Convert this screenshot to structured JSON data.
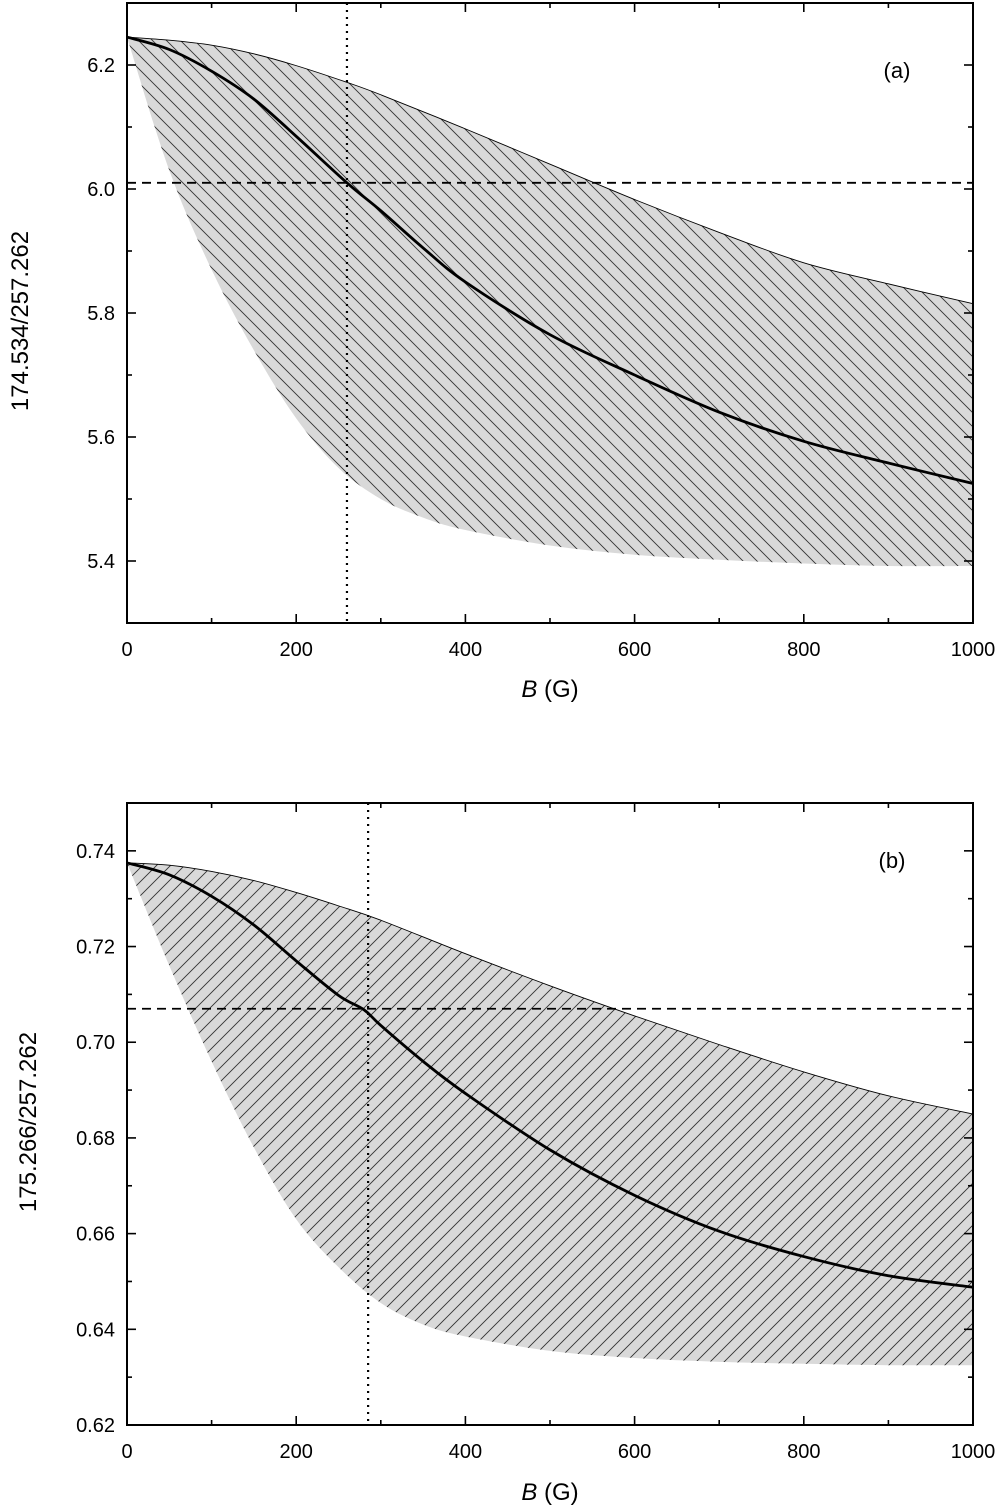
{
  "chart_data": [
    {
      "type": "area",
      "panel_label": "(a)",
      "xlabel_italic": "B",
      "xlabel_rest": " (G)",
      "ylabel": "174.534/257.262",
      "xlim": [
        0,
        1000
      ],
      "ylim": [
        5.3,
        6.3
      ],
      "xticks": [
        0,
        200,
        400,
        600,
        800,
        1000
      ],
      "yticks": [
        5.4,
        5.6,
        5.8,
        6.0,
        6.2
      ],
      "ytick_decimals": 1,
      "grid": false,
      "fill_color": "#d9d9d9",
      "hatch": "diagonal",
      "band_upper": {
        "x": [
          0,
          50,
          100,
          150,
          200,
          260,
          300,
          400,
          500,
          600,
          700,
          800,
          900,
          1000
        ],
        "y": [
          6.245,
          6.24,
          6.232,
          6.218,
          6.199,
          6.172,
          6.152,
          6.097,
          6.04,
          5.983,
          5.93,
          5.881,
          5.847,
          5.815
        ]
      },
      "band_lower": {
        "x": [
          0,
          50,
          100,
          150,
          200,
          250,
          300,
          350,
          400,
          500,
          600,
          700,
          800,
          900,
          1000
        ],
        "y": [
          6.245,
          6.03,
          5.87,
          5.74,
          5.63,
          5.55,
          5.5,
          5.47,
          5.45,
          5.425,
          5.41,
          5.402,
          5.396,
          5.392,
          5.392
        ]
      },
      "center_curve": {
        "x": [
          0,
          50,
          100,
          150,
          200,
          260,
          300,
          350,
          400,
          500,
          600,
          700,
          800,
          900,
          1000
        ],
        "y": [
          6.245,
          6.225,
          6.19,
          6.145,
          6.085,
          6.01,
          5.965,
          5.905,
          5.85,
          5.765,
          5.7,
          5.64,
          5.593,
          5.558,
          5.525
        ]
      },
      "hline_dashed": 6.01,
      "vline_dotted": 260
    },
    {
      "type": "area",
      "panel_label": "(b)",
      "xlabel_italic": "B",
      "xlabel_rest": " (G)",
      "ylabel": "175.266/257.262",
      "xlim": [
        0,
        1000
      ],
      "ylim": [
        0.62,
        0.75
      ],
      "xticks": [
        0,
        200,
        400,
        600,
        800,
        1000
      ],
      "yticks": [
        0.62,
        0.64,
        0.66,
        0.68,
        0.7,
        0.72,
        0.74
      ],
      "ytick_decimals": 2,
      "grid": false,
      "fill_color": "#d9d9d9",
      "hatch": "diagonal",
      "band_upper": {
        "x": [
          0,
          50,
          100,
          150,
          200,
          250,
          300,
          400,
          500,
          600,
          700,
          800,
          900,
          1000
        ],
        "y": [
          0.7375,
          0.737,
          0.7357,
          0.7338,
          0.7313,
          0.7285,
          0.7255,
          0.7185,
          0.7118,
          0.7055,
          0.6995,
          0.6938,
          0.6888,
          0.685
        ]
      },
      "band_lower": {
        "x": [
          0,
          50,
          100,
          150,
          200,
          250,
          300,
          350,
          400,
          500,
          600,
          700,
          800,
          900,
          1000
        ],
        "y": [
          0.7375,
          0.716,
          0.696,
          0.678,
          0.663,
          0.653,
          0.6455,
          0.641,
          0.6385,
          0.6355,
          0.634,
          0.6332,
          0.6328,
          0.6325,
          0.6325
        ]
      },
      "center_curve": {
        "x": [
          0,
          50,
          100,
          150,
          200,
          250,
          280,
          300,
          350,
          400,
          500,
          600,
          700,
          800,
          900,
          1000
        ],
        "y": [
          0.7375,
          0.735,
          0.7305,
          0.7245,
          0.717,
          0.7098,
          0.7068,
          0.7035,
          0.696,
          0.6893,
          0.6775,
          0.668,
          0.6605,
          0.6552,
          0.6512,
          0.6488
        ]
      },
      "hline_dashed": 0.707,
      "vline_dotted": 285
    }
  ]
}
